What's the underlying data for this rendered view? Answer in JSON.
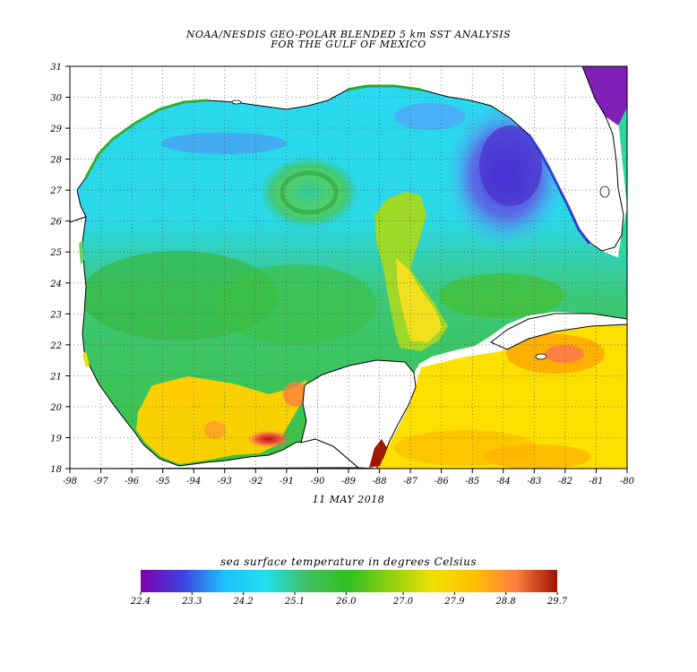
{
  "header": {
    "title_line1": "NOAA/NESDIS GEO-POLAR BLENDED 5 km SST ANALYSIS",
    "title_line2": "FOR THE GULF OF MEXICO"
  },
  "map": {
    "region": "Gulf of Mexico",
    "lon_ticks": [
      "-98",
      "-97",
      "-96",
      "-95",
      "-94",
      "-93",
      "-92",
      "-91",
      "-90",
      "-89",
      "-88",
      "-87",
      "-86",
      "-85",
      "-84",
      "-83",
      "-82",
      "-81",
      "-80"
    ],
    "lat_ticks": [
      "18",
      "19",
      "20",
      "21",
      "22",
      "23",
      "24",
      "25",
      "26",
      "27",
      "28",
      "29",
      "30",
      "31"
    ],
    "lon_range": [
      -98,
      -80
    ],
    "lat_range": [
      18,
      31
    ],
    "grid": true,
    "date": "11 MAY 2018",
    "colors": {
      "land": "#ffffff",
      "coast": "#000000",
      "grid": "#555555"
    },
    "features": [
      {
        "name": "cool loop current eddy",
        "lon": -90.2,
        "lat": 26.9,
        "temp": 26.3
      },
      {
        "name": "warm loop current tongue",
        "lon": -87.4,
        "lat": 24.5,
        "temp": 27.8
      },
      {
        "name": "cool west florida shelf",
        "lon": -84.0,
        "lat": 27.6,
        "temp": 23.9
      },
      {
        "name": "warm bay of campeche",
        "lon": -92.0,
        "lat": 18.8,
        "temp": 29.2
      }
    ]
  },
  "colorbar": {
    "label": "sea surface temperature in degrees Celsius",
    "ticks": [
      "22.4",
      "23.3",
      "24.2",
      "25.1",
      "26.0",
      "27.0",
      "27.9",
      "28.8",
      "29.7"
    ],
    "range": [
      22.4,
      29.7
    ],
    "stops": [
      "#8000b0",
      "#4040e0",
      "#1ec0ff",
      "#20e0f0",
      "#40c060",
      "#30c020",
      "#90d010",
      "#f0e000",
      "#ffc000",
      "#ff8040",
      "#a01000"
    ]
  }
}
